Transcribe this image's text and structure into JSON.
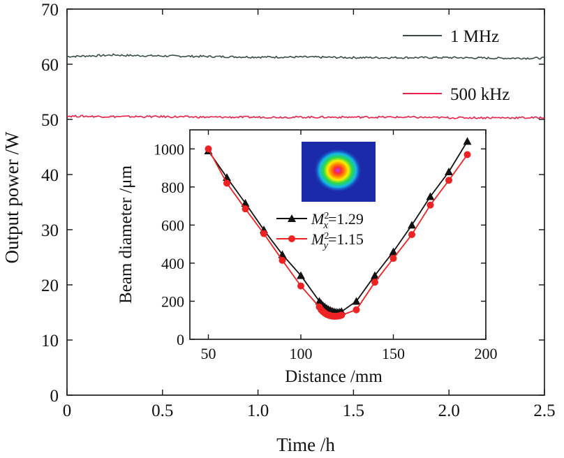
{
  "chart_data": [
    {
      "type": "line",
      "xlabel": "Time /h",
      "ylabel": "Output power /W",
      "xlim": [
        0,
        2.5
      ],
      "ylim": [
        0,
        70
      ],
      "xticks": [
        "0",
        "0.5",
        "1.0",
        "1.5",
        "2.0",
        "2.5"
      ],
      "yticks": [
        "0",
        "10",
        "20",
        "30",
        "40",
        "50",
        "60",
        "70"
      ],
      "xtick_values": [
        0,
        0.5,
        1.0,
        1.5,
        2.0,
        2.5
      ],
      "ytick_values": [
        0,
        10,
        20,
        30,
        40,
        50,
        60,
        70
      ],
      "series": [
        {
          "name": "1 MHz",
          "color": "#3a4a4a",
          "x": [
            0,
            0.1,
            0.2,
            0.25,
            0.3,
            0.5,
            0.75,
            1.0,
            1.25,
            1.5,
            1.75,
            2.0,
            2.25,
            2.5
          ],
          "y": [
            61.4,
            61.5,
            61.6,
            61.7,
            61.6,
            61.5,
            61.4,
            61.3,
            61.3,
            61.2,
            61.2,
            61.2,
            61.1,
            61.1
          ]
        },
        {
          "name": "500 kHz",
          "color": "#e8204a",
          "x": [
            0,
            0.25,
            0.5,
            0.75,
            1.0,
            1.25,
            1.5,
            1.75,
            2.0,
            2.25,
            2.5
          ],
          "y": [
            50.6,
            50.5,
            50.5,
            50.4,
            50.4,
            50.4,
            50.4,
            50.4,
            50.3,
            50.3,
            50.3
          ]
        }
      ]
    },
    {
      "type": "line",
      "xlabel": "Distance /mm",
      "ylabel": "Beam diameter /μm",
      "xlim": [
        40,
        200
      ],
      "ylim": [
        0,
        1100
      ],
      "xticks": [
        "50",
        "100",
        "150",
        "200"
      ],
      "yticks": [
        "0",
        "200",
        "400",
        "600",
        "800",
        "1000"
      ],
      "xtick_values": [
        50,
        100,
        150,
        200
      ],
      "ytick_values": [
        0,
        200,
        400,
        600,
        800,
        1000
      ],
      "series": [
        {
          "name": "M_x^2=1.29",
          "legend_main": "M",
          "legend_sup": "2",
          "legend_sub": "x",
          "legend_value": "=1.29",
          "color": "#111111",
          "marker": "triangle",
          "x": [
            50,
            60,
            70,
            80,
            90,
            100,
            110,
            111,
            112,
            113,
            114,
            115,
            116,
            117,
            118,
            119,
            120,
            121,
            122,
            130,
            140,
            150,
            160,
            170,
            180,
            190
          ],
          "y": [
            990,
            850,
            715,
            575,
            445,
            335,
            200,
            188,
            178,
            170,
            163,
            157,
            152,
            148,
            145,
            143,
            142,
            143,
            146,
            200,
            335,
            460,
            600,
            750,
            880,
            1040
          ]
        },
        {
          "name": "M_y^2=1.15",
          "legend_main": "M",
          "legend_sup": "2",
          "legend_sub": "y",
          "legend_value": "=1.15",
          "color": "#ee2222",
          "marker": "circle",
          "x": [
            50,
            60,
            70,
            80,
            90,
            100,
            110,
            111,
            112,
            113,
            114,
            115,
            116,
            117,
            118,
            119,
            120,
            121,
            122,
            130,
            140,
            150,
            160,
            170,
            180,
            190
          ],
          "y": [
            1000,
            820,
            685,
            555,
            415,
            280,
            170,
            155,
            145,
            137,
            131,
            127,
            124,
            122,
            121,
            121,
            122,
            124,
            127,
            155,
            300,
            425,
            550,
            705,
            835,
            970
          ]
        }
      ]
    }
  ]
}
